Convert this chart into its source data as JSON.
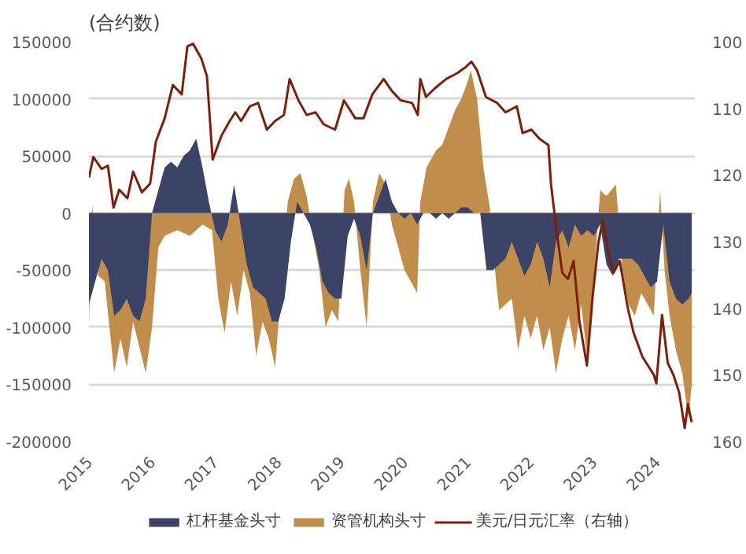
{
  "chart_data": {
    "type": "area",
    "ylabel": "(合约数)",
    "xlim": [
      2015,
      2024.6
    ],
    "xticks": [
      2015,
      2016,
      2017,
      2018,
      2019,
      2020,
      2021,
      2022,
      2023,
      2024
    ],
    "ylim": [
      -200000,
      150000
    ],
    "yticks": [
      -200000,
      -150000,
      -100000,
      -50000,
      0,
      50000,
      100000,
      150000
    ],
    "y2lim": [
      160,
      100
    ],
    "y2ticks": [
      100,
      110,
      120,
      130,
      140,
      150,
      160
    ],
    "grid": "y",
    "legend": "bottom",
    "series": [
      {
        "name": "资管机构头寸",
        "color": "#c08e4a",
        "x": [
          2015.0,
          2015.05,
          2015.15,
          2015.25,
          2015.4,
          2015.5,
          2015.6,
          2015.7,
          2015.9,
          2016.0,
          2016.1,
          2016.2,
          2016.4,
          2016.6,
          2016.8,
          2016.95,
          2017.05,
          2017.15,
          2017.25,
          2017.35,
          2017.45,
          2017.55,
          2017.65,
          2017.75,
          2017.85,
          2017.95,
          2018.15,
          2018.25,
          2018.35,
          2018.45,
          2018.55,
          2018.65,
          2018.75,
          2018.85,
          2018.95,
          2019.05,
          2019.12,
          2019.2,
          2019.3,
          2019.4,
          2019.5,
          2019.6,
          2019.7,
          2019.8,
          2019.9,
          2020.0,
          2020.1,
          2020.2,
          2020.25,
          2020.35,
          2020.5,
          2020.6,
          2020.7,
          2020.8,
          2020.9,
          2021.0,
          2021.05,
          2021.15,
          2021.25,
          2021.35,
          2021.45,
          2021.5,
          2021.6,
          2021.7,
          2021.8,
          2021.9,
          2022.0,
          2022.1,
          2022.2,
          2022.3,
          2022.4,
          2022.5,
          2022.6,
          2022.7,
          2022.8,
          2022.9,
          2023.0,
          2023.1,
          2023.2,
          2023.35,
          2023.45,
          2023.55,
          2023.65,
          2023.75,
          2023.85,
          2023.95,
          2024.05,
          2024.12,
          2024.2,
          2024.3,
          2024.4,
          2024.5,
          2024.55
        ],
        "values": [
          -100000,
          8000,
          -55000,
          -60000,
          -140000,
          -110000,
          -135000,
          -95000,
          -140000,
          -100000,
          -30000,
          -20000,
          -15000,
          -20000,
          -10000,
          -15000,
          -75000,
          -105000,
          -60000,
          -90000,
          -50000,
          -70000,
          -125000,
          -95000,
          -110000,
          -135000,
          10000,
          30000,
          35000,
          15000,
          -20000,
          -50000,
          -100000,
          -85000,
          -95000,
          20000,
          30000,
          10000,
          -50000,
          -100000,
          10000,
          35000,
          25000,
          -10000,
          -30000,
          -50000,
          -60000,
          -70000,
          10000,
          40000,
          55000,
          60000,
          75000,
          90000,
          100000,
          115000,
          125000,
          100000,
          40000,
          5000,
          -60000,
          -85000,
          -80000,
          -75000,
          -120000,
          -90000,
          -110000,
          -90000,
          -120000,
          -100000,
          -140000,
          -110000,
          -90000,
          -120000,
          -80000,
          -130000,
          -60000,
          20000,
          15000,
          25000,
          -50000,
          -80000,
          -90000,
          -70000,
          -80000,
          -90000,
          20000,
          -50000,
          -90000,
          -120000,
          -140000,
          -180000,
          -150000
        ]
      },
      {
        "name": "杠杆基金头寸",
        "color": "#3b4466",
        "x": [
          2015.0,
          2015.1,
          2015.2,
          2015.3,
          2015.4,
          2015.5,
          2015.6,
          2015.7,
          2015.8,
          2015.9,
          2016.0,
          2016.1,
          2016.2,
          2016.3,
          2016.4,
          2016.5,
          2016.6,
          2016.7,
          2016.8,
          2016.9,
          2017.0,
          2017.1,
          2017.2,
          2017.3,
          2017.4,
          2017.5,
          2017.6,
          2017.7,
          2017.8,
          2017.9,
          2018.0,
          2018.1,
          2018.2,
          2018.3,
          2018.4,
          2018.5,
          2018.6,
          2018.7,
          2018.8,
          2018.9,
          2019.0,
          2019.1,
          2019.2,
          2019.3,
          2019.4,
          2019.5,
          2019.6,
          2019.7,
          2019.8,
          2019.9,
          2020.0,
          2020.1,
          2020.2,
          2020.3,
          2020.4,
          2020.5,
          2020.6,
          2020.7,
          2020.8,
          2020.9,
          2021.0,
          2021.1,
          2021.2,
          2021.3,
          2021.4,
          2021.5,
          2021.6,
          2021.7,
          2021.8,
          2021.9,
          2022.0,
          2022.1,
          2022.2,
          2022.3,
          2022.4,
          2022.5,
          2022.6,
          2022.7,
          2022.8,
          2022.9,
          2023.0,
          2023.1,
          2023.2,
          2023.3,
          2023.4,
          2023.5,
          2023.6,
          2023.7,
          2023.8,
          2023.9,
          2024.0,
          2024.1,
          2024.2,
          2024.3,
          2024.4,
          2024.5,
          2024.55
        ],
        "values": [
          -80000,
          -60000,
          -40000,
          -50000,
          -90000,
          -85000,
          -75000,
          -90000,
          -95000,
          -75000,
          0,
          20000,
          40000,
          45000,
          40000,
          50000,
          55000,
          65000,
          40000,
          10000,
          -15000,
          -25000,
          -10000,
          25000,
          -10000,
          -45000,
          -65000,
          -70000,
          -75000,
          -95000,
          -95000,
          -75000,
          -25000,
          10000,
          0,
          -10000,
          -30000,
          -60000,
          -70000,
          -75000,
          -75000,
          -20000,
          -5000,
          -20000,
          -50000,
          0,
          15000,
          30000,
          10000,
          0,
          -5000,
          0,
          -10000,
          0,
          0,
          -5000,
          0,
          -5000,
          0,
          5000,
          5000,
          0,
          0,
          -50000,
          -50000,
          -45000,
          -40000,
          -25000,
          -40000,
          -55000,
          -45000,
          -25000,
          -40000,
          -65000,
          -25000,
          -15000,
          -30000,
          -10000,
          -20000,
          -15000,
          -20000,
          -10000,
          -45000,
          -55000,
          -40000,
          -40000,
          -40000,
          -45000,
          -55000,
          -65000,
          -60000,
          -10000,
          -60000,
          -75000,
          -80000,
          -75000,
          -70000
        ]
      },
      {
        "name": "美元/日元汇率（右轴）",
        "color": "#7b1f0a",
        "type": "line",
        "axis": "y2",
        "line_style": "solid",
        "x": [
          2015.0,
          2015.07,
          2015.2,
          2015.3,
          2015.39,
          2015.48,
          2015.61,
          2015.7,
          2015.84,
          2015.97,
          2016.06,
          2016.2,
          2016.33,
          2016.47,
          2016.56,
          2016.65,
          2016.78,
          2016.87,
          2016.96,
          2017.1,
          2017.23,
          2017.32,
          2017.41,
          2017.55,
          2017.68,
          2017.82,
          2017.95,
          2018.09,
          2018.18,
          2018.32,
          2018.45,
          2018.59,
          2018.72,
          2018.9,
          2019.04,
          2019.22,
          2019.35,
          2019.49,
          2019.67,
          2019.8,
          2019.94,
          2020.12,
          2020.21,
          2020.25,
          2020.34,
          2020.48,
          2020.66,
          2020.84,
          2020.97,
          2021.06,
          2021.15,
          2021.29,
          2021.47,
          2021.6,
          2021.78,
          2021.87,
          2022.01,
          2022.14,
          2022.28,
          2022.32,
          2022.41,
          2022.5,
          2022.59,
          2022.68,
          2022.77,
          2022.89,
          2022.98,
          2023.07,
          2023.14,
          2023.22,
          2023.31,
          2023.41,
          2023.54,
          2023.63,
          2023.77,
          2023.95,
          2023.99,
          2024.08,
          2024.17,
          2024.26,
          2024.35,
          2024.44,
          2024.49,
          2024.55
        ],
        "values": [
          120.4,
          117.3,
          119.1,
          118.6,
          124.9,
          122.2,
          123.5,
          119.5,
          122.6,
          121.3,
          115.0,
          111.5,
          106.5,
          107.9,
          100.7,
          100.3,
          102.5,
          105.2,
          117.7,
          114.1,
          111.9,
          110.6,
          111.9,
          109.7,
          109.2,
          113.2,
          111.9,
          111.0,
          105.6,
          108.8,
          111.0,
          110.6,
          112.4,
          113.2,
          108.8,
          111.5,
          111.5,
          107.9,
          105.6,
          107.4,
          108.8,
          109.2,
          111.0,
          105.6,
          108.3,
          107.0,
          105.6,
          104.7,
          103.8,
          103.0,
          104.3,
          108.3,
          109.2,
          110.6,
          109.7,
          113.7,
          113.2,
          114.6,
          115.5,
          121.3,
          128.5,
          134.7,
          135.6,
          132.9,
          141.9,
          148.6,
          138.3,
          130.3,
          126.7,
          131.2,
          134.7,
          132.9,
          140.1,
          143.7,
          147.3,
          150.0,
          151.3,
          141.0,
          148.2,
          150.0,
          152.6,
          158.0,
          154.4,
          157.1
        ]
      }
    ]
  }
}
